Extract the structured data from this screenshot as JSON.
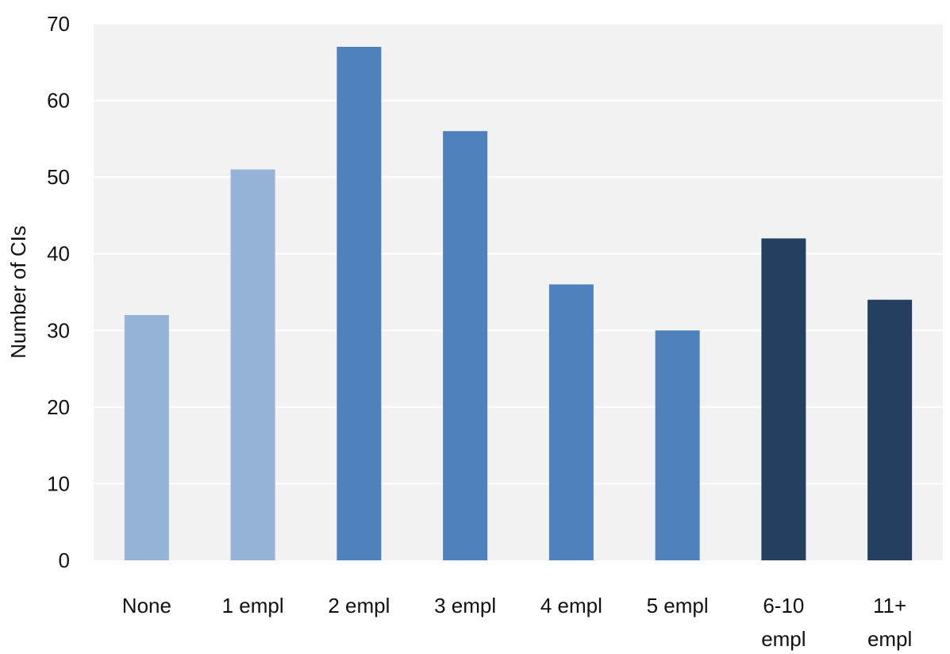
{
  "chart_data": {
    "type": "bar",
    "title": "",
    "xlabel": "",
    "ylabel": "Number of CIs",
    "ylim": [
      0,
      70
    ],
    "yticks": [
      0,
      10,
      20,
      30,
      40,
      50,
      60,
      70
    ],
    "grid": true,
    "categories": [
      [
        "None"
      ],
      [
        "1 empl"
      ],
      [
        "2 empl"
      ],
      [
        "3 empl"
      ],
      [
        "4 empl"
      ],
      [
        "5 empl"
      ],
      [
        "6-10",
        "empl"
      ],
      [
        "11+",
        "empl"
      ]
    ],
    "values": [
      32,
      51,
      67,
      56,
      36,
      30,
      42,
      34
    ],
    "colors": [
      "#95b3d7",
      "#95b3d7",
      "#4f81bd",
      "#4f81bd",
      "#4f81bd",
      "#4f81bd",
      "#243f60",
      "#243f60"
    ],
    "plot_background": "#f2f2f2",
    "gridline_color": "#ffffff"
  }
}
